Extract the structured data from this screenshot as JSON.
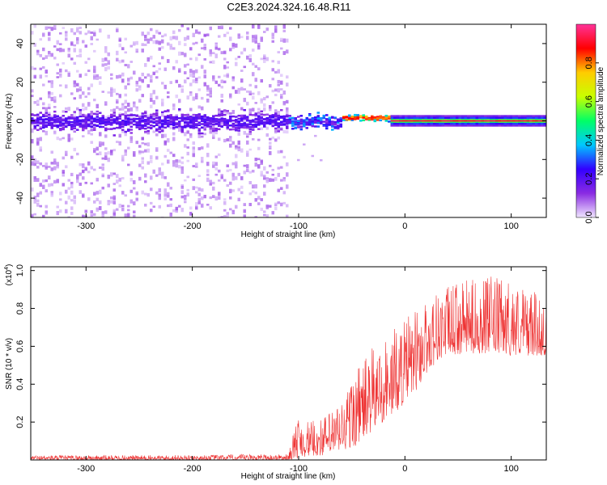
{
  "title": "C2E3.2024.324.16.48.R11",
  "chart_data": [
    {
      "type": "heatmap",
      "name": "spectrogram",
      "xlabel": "Height of straight line (km)",
      "ylabel": "Frequency (Hz)",
      "xlim": [
        -352,
        133
      ],
      "ylim": [
        -50,
        50
      ],
      "xticks": [
        -300,
        -200,
        -100,
        0,
        100
      ],
      "yticks": [
        -40,
        -20,
        0,
        20,
        40
      ],
      "colorbar": {
        "label": "Normalized spectral amplitude",
        "range": [
          0,
          1
        ],
        "ticks": [
          0.0,
          0.2,
          0.4,
          0.6,
          0.8
        ],
        "tick_labels": [
          "0.0",
          "0.2",
          "0.4",
          "0.6",
          "0.8"
        ],
        "colors": [
          "#f0e6ff",
          "#8a2be2",
          "#3300ff",
          "#00c8ff",
          "#00ff66",
          "#c8ff00",
          "#ffcc00",
          "#ff0000",
          "#ff3399"
        ]
      },
      "regions": [
        {
          "x_range": [
            -352,
            -110
          ],
          "description_values": {
            "core_freq_halfwidth_hz": 8,
            "scatter_freq_range_hz": [
              -50,
              50
            ],
            "core_amplitude": 0.15
          }
        },
        {
          "x_range": [
            -110,
            -60
          ],
          "description_values": {
            "core_freq_halfwidth_hz": 5,
            "core_amplitude": 0.3
          }
        },
        {
          "x_range": [
            -60,
            -15
          ],
          "description_values": {
            "core_freq_hz": 2,
            "core_amplitude": 0.75
          }
        },
        {
          "x_range": [
            -15,
            133
          ],
          "description_values": {
            "core_freq_hz": 0,
            "core_amplitude": 0.95
          }
        }
      ]
    },
    {
      "type": "line",
      "name": "snr",
      "xlabel": "Height of straight line (km)",
      "ylabel": "SNR (10 * v/v)",
      "multiplier_label": "(x10",
      "multiplier_exp": "4",
      "multiplier_close": ")",
      "xlim": [
        -352,
        133
      ],
      "ylim": [
        0,
        1.02
      ],
      "xticks": [
        -300,
        -200,
        -100,
        0,
        100
      ],
      "yticks": [
        0.2,
        0.4,
        0.6,
        0.8,
        1.0
      ],
      "line_color": "#ee3333",
      "envelope": {
        "x": [
          -352,
          -300,
          -200,
          -150,
          -110,
          -100,
          -90,
          -80,
          -70,
          -60,
          -50,
          -40,
          -30,
          -20,
          -10,
          0,
          10,
          20,
          30,
          40,
          60,
          80,
          100,
          120,
          133
        ],
        "low": [
          0.0,
          0.0,
          0.0,
          0.0,
          0.0,
          0.01,
          0.02,
          0.02,
          0.03,
          0.04,
          0.06,
          0.1,
          0.15,
          0.2,
          0.24,
          0.3,
          0.36,
          0.45,
          0.52,
          0.55,
          0.56,
          0.56,
          0.55,
          0.55,
          0.55
        ],
        "high": [
          0.025,
          0.025,
          0.025,
          0.03,
          0.03,
          0.25,
          0.2,
          0.22,
          0.26,
          0.32,
          0.45,
          0.54,
          0.6,
          0.65,
          0.7,
          0.75,
          0.8,
          0.85,
          0.9,
          0.92,
          0.95,
          0.97,
          0.95,
          0.9,
          0.82
        ]
      }
    }
  ]
}
